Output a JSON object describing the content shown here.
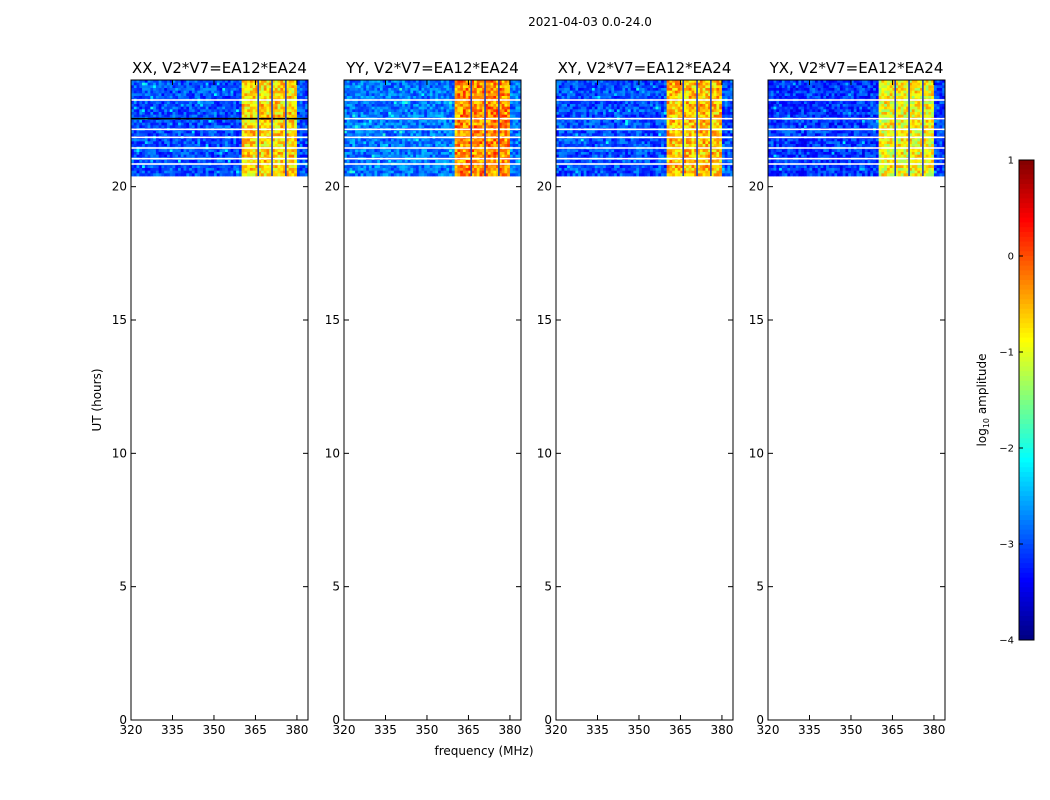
{
  "figure": {
    "title": "2021-04-03 0.0-24.0"
  },
  "chart_data": {
    "type": "heatmap",
    "panels": [
      {
        "title": "XX, V2*V7=EA12*EA24",
        "polarization": "XX",
        "baseline": "V2*V7=EA12*EA24"
      },
      {
        "title": "YY, V2*V7=EA12*EA24",
        "polarization": "YY",
        "baseline": "V2*V7=EA12*EA24"
      },
      {
        "title": "XY, V2*V7=EA12*EA24",
        "polarization": "XY",
        "baseline": "V2*V7=EA12*EA24"
      },
      {
        "title": "YX, V2*V7=EA12*EA24",
        "polarization": "YX",
        "baseline": "V2*V7=EA12*EA24"
      }
    ],
    "xlabel": "frequency (MHz)",
    "ylabel": "UT (hours)",
    "xlim": [
      320,
      384
    ],
    "ylim": [
      0,
      24
    ],
    "xticks": [
      320,
      335,
      350,
      365,
      380
    ],
    "yticks": [
      0,
      5,
      10,
      15,
      20
    ],
    "data_extent": {
      "time_hours": [
        20.4,
        24.0
      ],
      "freq_mhz": [
        320,
        384
      ]
    },
    "rfi_band_mhz": [
      360.5,
      379.5
    ],
    "flagged_times_hours": [
      23.25,
      22.55,
      22.15,
      21.85,
      21.45,
      21.05,
      20.85
    ],
    "colorbar": {
      "label": "log10 amplitude",
      "label_text": "log",
      "label_sub": "10",
      "label_rest": " amplitude",
      "range": [
        -4,
        1
      ],
      "ticks": [
        "1",
        "0",
        "−1",
        "−2",
        "−3",
        "−4"
      ],
      "tick_values": [
        1,
        0,
        -1,
        -2,
        -3,
        -4
      ],
      "colormap": "jet"
    }
  }
}
